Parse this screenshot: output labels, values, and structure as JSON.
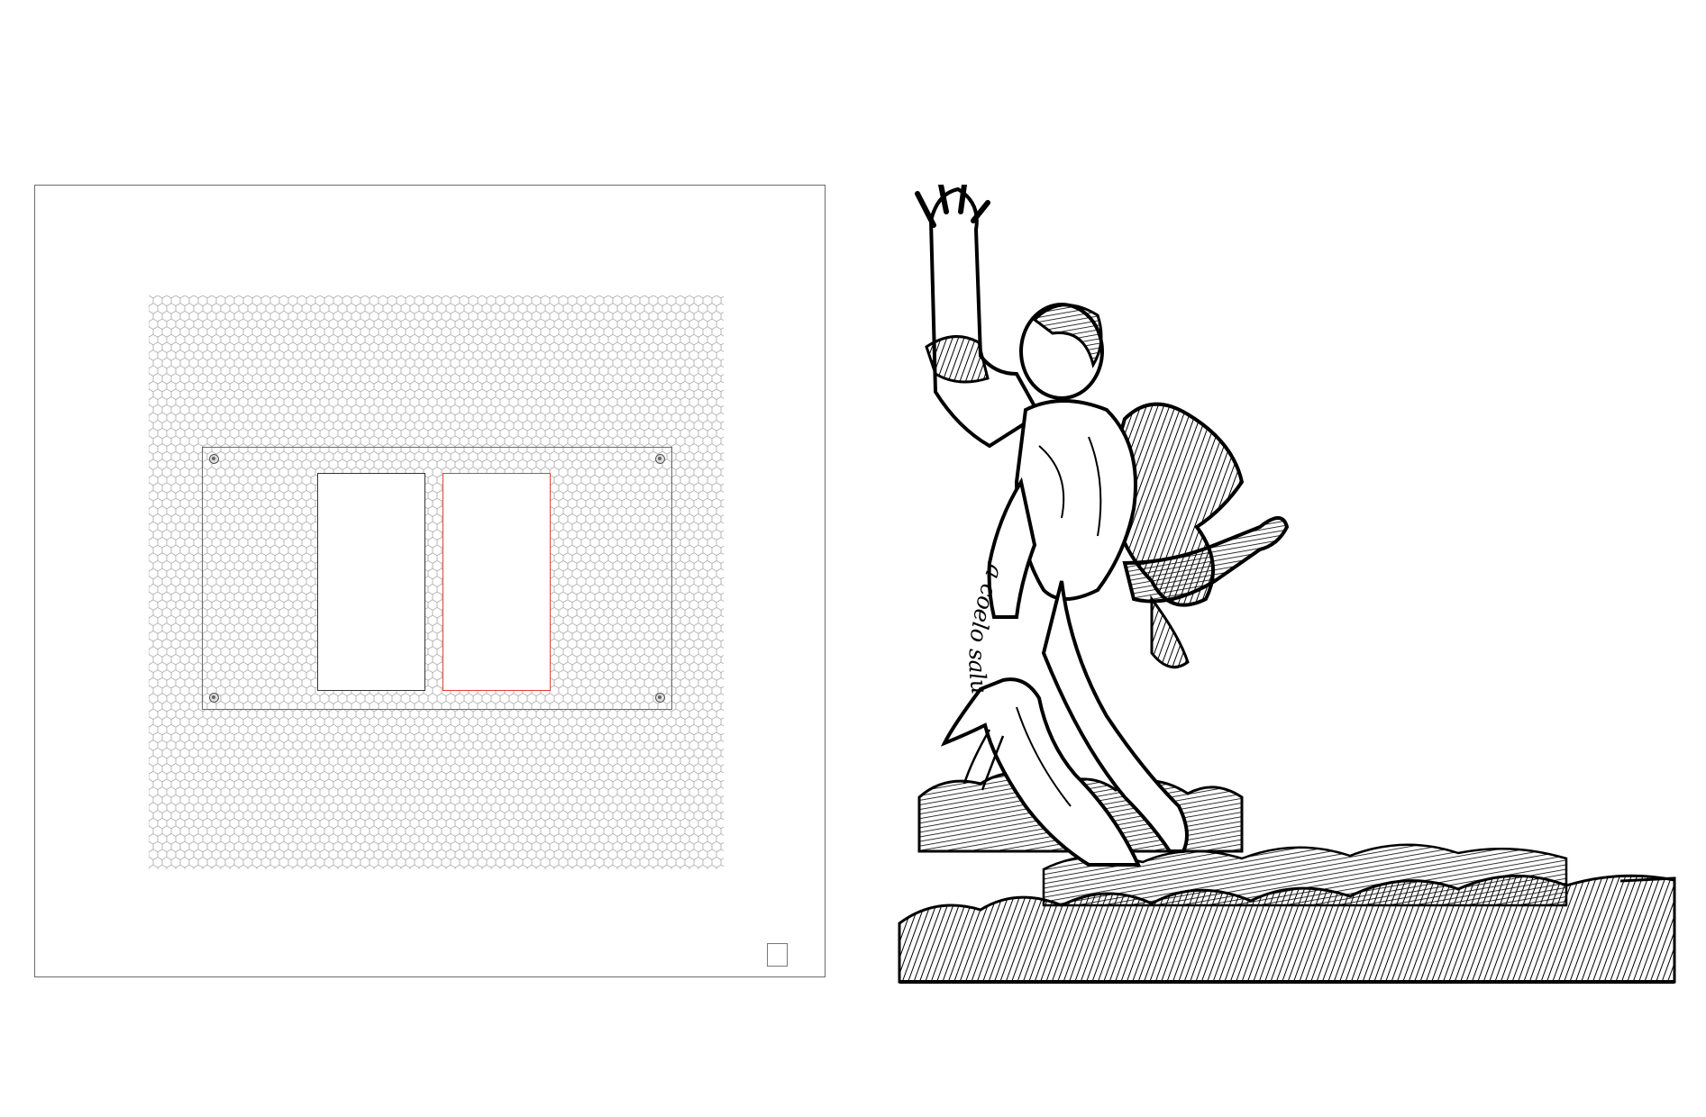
{
  "panels": {
    "left": {
      "components": [
        "mesh-grid",
        "mounting-plate",
        "slot-left",
        "slot-right",
        "corner-box"
      ],
      "colors": {
        "outline": "#6b6b6b",
        "mesh": "#9a9a9a",
        "slot_left": "#333333",
        "slot_right": "#e0403c"
      }
    },
    "right": {
      "motto": "a coelo salus",
      "colors": {
        "ink": "#000000"
      }
    }
  }
}
